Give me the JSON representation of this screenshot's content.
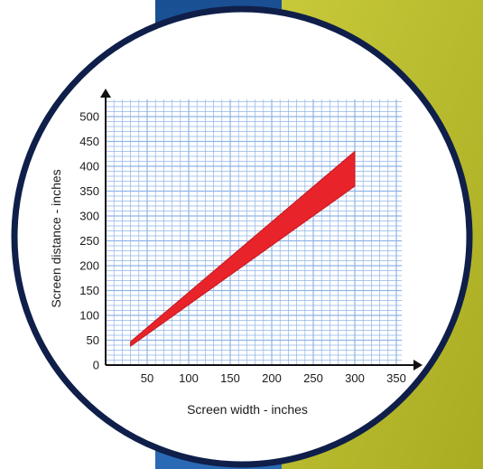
{
  "colors": {
    "accent_blue": "#1d5aa0",
    "accent_olive": "#b9bc2c",
    "circle_border": "#0f1f4a",
    "grid_line": "#8fb4e6",
    "band_fill": "#e8232a",
    "axis": "#111111"
  },
  "chart_data": {
    "type": "area",
    "xlabel": "Screen width - inches",
    "ylabel": "Screen distance - inches",
    "xlim": [
      0,
      360
    ],
    "ylim": [
      0,
      520
    ],
    "x_ticks": [
      50,
      100,
      150,
      200,
      250,
      300,
      350
    ],
    "y_ticks": [
      0,
      50,
      100,
      150,
      200,
      250,
      300,
      350,
      400,
      450,
      500
    ],
    "grid": true,
    "band": {
      "x": [
        30,
        300
      ],
      "upper": [
        47,
        430
      ],
      "lower": [
        38,
        360
      ]
    }
  }
}
